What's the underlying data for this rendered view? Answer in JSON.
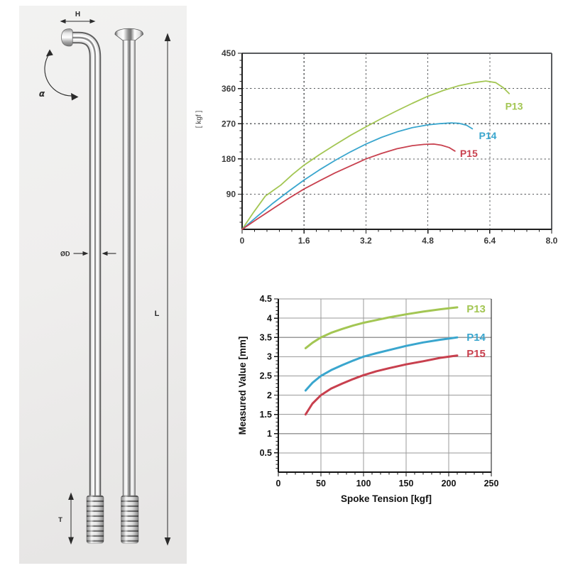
{
  "spoke_diagram": {
    "dimension_labels": {
      "head_width": "H",
      "bend_angle": "α",
      "length": "L",
      "thread_length": "T",
      "diameter": "ØD"
    }
  },
  "chart_data": [
    {
      "id": "load-chart",
      "type": "line",
      "title": "",
      "xlabel": "",
      "ylabel": "[ kgf ]",
      "xlim": [
        0,
        8
      ],
      "ylim": [
        0,
        450
      ],
      "grid": "dashed",
      "legend_position": "end-of-curve",
      "x_ticks": [
        {
          "v": 0,
          "label": "0"
        },
        {
          "v": 1.6,
          "label": "1.6"
        },
        {
          "v": 3.2,
          "label": "3.2"
        },
        {
          "v": 4.8,
          "label": "4.8"
        },
        {
          "v": 6.4,
          "label": "6.4"
        },
        {
          "v": 8,
          "label": "8.0"
        }
      ],
      "y_ticks": [
        {
          "v": 90,
          "label": "90"
        },
        {
          "v": 180,
          "label": "180"
        },
        {
          "v": 270,
          "label": "270"
        },
        {
          "v": 360,
          "label": "360"
        },
        {
          "v": 450,
          "label": "450"
        }
      ],
      "series": [
        {
          "name": "P13",
          "color": "#a3c653",
          "label_at": [
            6.8,
            306
          ],
          "points": [
            [
              0,
              0
            ],
            [
              0.3,
              44
            ],
            [
              0.6,
              85
            ],
            [
              0.8,
              99
            ],
            [
              1.0,
              113
            ],
            [
              1.3,
              140
            ],
            [
              1.6,
              164
            ],
            [
              2.0,
              191
            ],
            [
              2.4,
              216
            ],
            [
              2.8,
              240
            ],
            [
              3.2,
              262
            ],
            [
              3.6,
              283
            ],
            [
              4.0,
              303
            ],
            [
              4.4,
              322
            ],
            [
              4.8,
              340
            ],
            [
              5.2,
              355
            ],
            [
              5.6,
              367
            ],
            [
              6.0,
              375
            ],
            [
              6.3,
              379
            ],
            [
              6.55,
              375
            ],
            [
              6.75,
              362
            ],
            [
              6.9,
              347
            ]
          ]
        },
        {
          "name": "P14",
          "color": "#3aa6ce",
          "label_at": [
            6.12,
            230
          ],
          "points": [
            [
              0,
              0
            ],
            [
              0.4,
              34
            ],
            [
              0.8,
              67
            ],
            [
              1.2,
              97
            ],
            [
              1.6,
              126
            ],
            [
              2.0,
              152
            ],
            [
              2.4,
              176
            ],
            [
              2.8,
              198
            ],
            [
              3.2,
              218
            ],
            [
              3.6,
              235
            ],
            [
              4.0,
              249
            ],
            [
              4.4,
              260
            ],
            [
              4.8,
              267
            ],
            [
              5.1,
              270
            ],
            [
              5.4,
              272
            ],
            [
              5.6,
              271
            ],
            [
              5.8,
              266
            ],
            [
              5.95,
              257
            ]
          ]
        },
        {
          "name": "P15",
          "color": "#c8404e",
          "label_at": [
            5.63,
            185
          ],
          "points": [
            [
              0,
              0
            ],
            [
              0.4,
              27
            ],
            [
              0.8,
              53
            ],
            [
              1.2,
              79
            ],
            [
              1.6,
              103
            ],
            [
              2.0,
              124
            ],
            [
              2.4,
              144
            ],
            [
              2.8,
              162
            ],
            [
              3.2,
              180
            ],
            [
              3.6,
              194
            ],
            [
              4.0,
              206
            ],
            [
              4.4,
              214
            ],
            [
              4.7,
              217
            ],
            [
              4.95,
              218
            ],
            [
              5.15,
              215
            ],
            [
              5.35,
              209
            ],
            [
              5.5,
              200
            ]
          ]
        }
      ]
    },
    {
      "id": "tension-chart",
      "type": "line",
      "title": "",
      "xlabel": "Spoke Tension [kgf]",
      "ylabel": "Measured Value [mm]",
      "xlim": [
        0,
        250
      ],
      "ylim": [
        0,
        4.5
      ],
      "grid": "solid",
      "legend_position": "end-of-curve",
      "x_ticks": [
        {
          "v": 0,
          "label": "0"
        },
        {
          "v": 50,
          "label": "50"
        },
        {
          "v": 100,
          "label": "100"
        },
        {
          "v": 150,
          "label": "150"
        },
        {
          "v": 200,
          "label": "200"
        },
        {
          "v": 250,
          "label": "250"
        }
      ],
      "y_ticks": [
        {
          "v": 0.5,
          "label": "0.5"
        },
        {
          "v": 1,
          "label": "1"
        },
        {
          "v": 1.5,
          "label": "1.5"
        },
        {
          "v": 2,
          "label": "2"
        },
        {
          "v": 2.5,
          "label": "2.5"
        },
        {
          "v": 3,
          "label": "3"
        },
        {
          "v": 3.5,
          "label": "3.5"
        },
        {
          "v": 4,
          "label": "4"
        },
        {
          "v": 4.5,
          "label": "4.5"
        }
      ],
      "series": [
        {
          "name": "P13",
          "color": "#a3c653",
          "label_at": [
            221,
            4.15
          ],
          "points": [
            [
              32,
              3.22
            ],
            [
              40,
              3.36
            ],
            [
              50,
              3.5
            ],
            [
              62,
              3.62
            ],
            [
              75,
              3.72
            ],
            [
              88,
              3.81
            ],
            [
              100,
              3.88
            ],
            [
              115,
              3.95
            ],
            [
              130,
              4.02
            ],
            [
              150,
              4.1
            ],
            [
              170,
              4.17
            ],
            [
              190,
              4.23
            ],
            [
              210,
              4.28
            ]
          ]
        },
        {
          "name": "P14",
          "color": "#3aa6ce",
          "label_at": [
            221,
            3.41
          ],
          "points": [
            [
              32,
              2.12
            ],
            [
              40,
              2.32
            ],
            [
              50,
              2.5
            ],
            [
              62,
              2.65
            ],
            [
              75,
              2.78
            ],
            [
              88,
              2.9
            ],
            [
              100,
              3.0
            ],
            [
              115,
              3.09
            ],
            [
              130,
              3.17
            ],
            [
              150,
              3.28
            ],
            [
              170,
              3.37
            ],
            [
              190,
              3.44
            ],
            [
              210,
              3.5
            ]
          ]
        },
        {
          "name": "P15",
          "color": "#c8404e",
          "label_at": [
            221,
            2.99
          ],
          "points": [
            [
              32,
              1.5
            ],
            [
              40,
              1.78
            ],
            [
              50,
              2.0
            ],
            [
              62,
              2.17
            ],
            [
              75,
              2.3
            ],
            [
              88,
              2.42
            ],
            [
              100,
              2.52
            ],
            [
              115,
              2.62
            ],
            [
              130,
              2.7
            ],
            [
              150,
              2.8
            ],
            [
              170,
              2.88
            ],
            [
              190,
              2.97
            ],
            [
              210,
              3.03
            ]
          ]
        }
      ]
    }
  ]
}
